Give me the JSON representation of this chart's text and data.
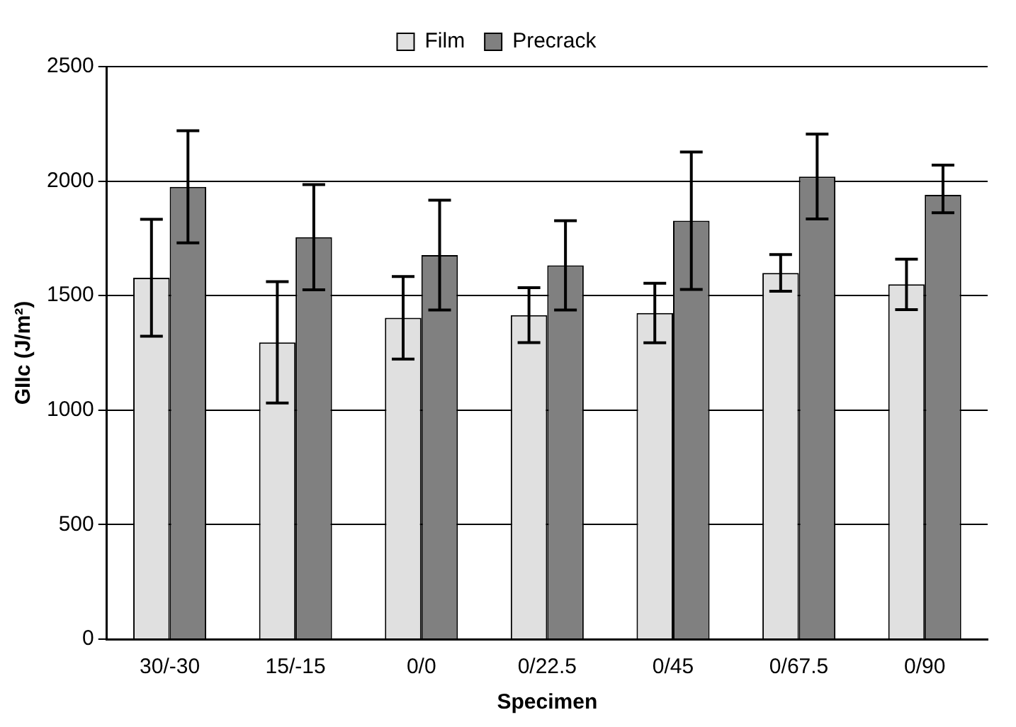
{
  "chart_data": {
    "type": "bar",
    "xlabel": "Specimen",
    "ylabel": "GIIc (J/m²)",
    "categories": [
      "30/-30",
      "15/-15",
      "0/0",
      "0/22.5",
      "0/45",
      "0/67.5",
      "0/90"
    ],
    "series": [
      {
        "name": "Film",
        "color": "#e0e0e0",
        "values": [
          1578,
          1296,
          1403,
          1415,
          1424,
          1599,
          1549
        ],
        "errors": [
          255,
          265,
          180,
          120,
          130,
          80,
          110
        ]
      },
      {
        "name": "Precrack",
        "color": "#808080",
        "values": [
          1975,
          1755,
          1677,
          1632,
          1827,
          2020,
          1940
        ],
        "errors": [
          245,
          230,
          240,
          195,
          300,
          185,
          [
            1862,
            2070
          ]
        ]
      }
    ],
    "ylim": [
      0,
      2500
    ],
    "yticks": [
      0,
      500,
      1000,
      1500,
      2000,
      2500
    ],
    "grid": "y",
    "legend": "top"
  }
}
